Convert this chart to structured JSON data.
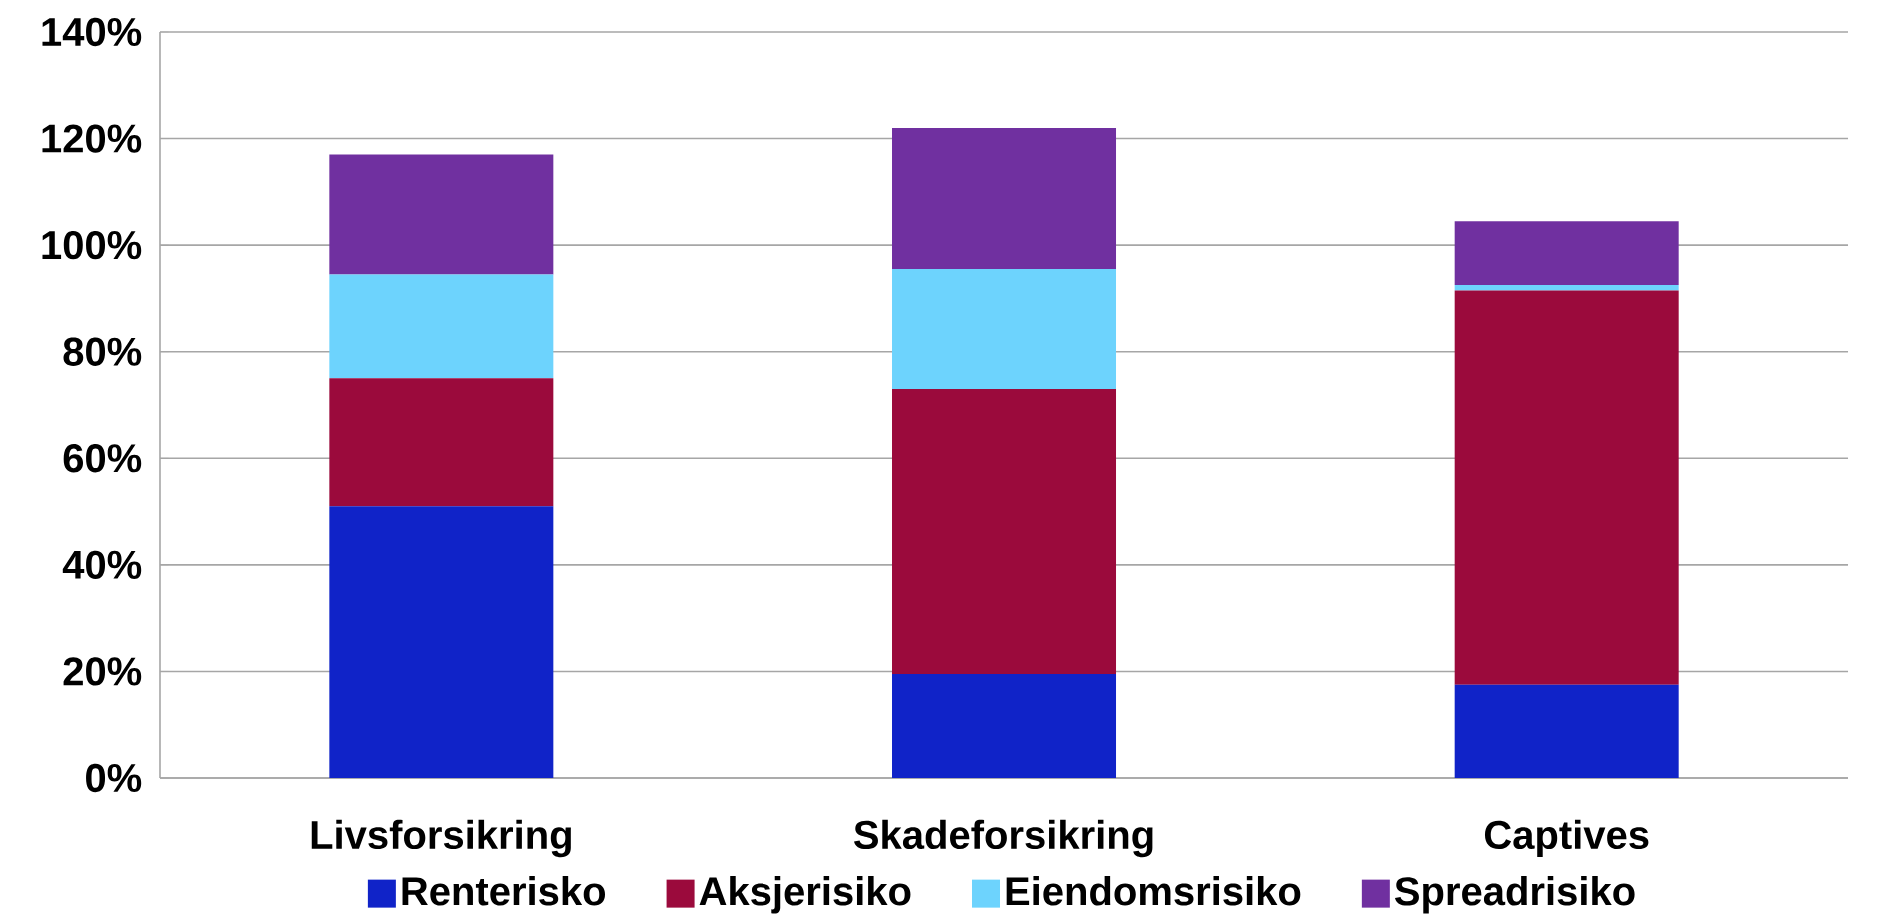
{
  "chart_data": {
    "type": "bar",
    "stacked": true,
    "categories": [
      "Livsforsikring",
      "Skadeforsikring",
      "Captives"
    ],
    "series": [
      {
        "name": "Renterisko",
        "color": "#1023c8",
        "values": [
          51,
          19.5,
          17.5
        ]
      },
      {
        "name": "Aksjerisiko",
        "color": "#9b0a3c",
        "values": [
          24,
          53.5,
          74
        ]
      },
      {
        "name": "Eiendomsrisiko",
        "color": "#6dd3fd",
        "values": [
          19.5,
          22.5,
          1
        ]
      },
      {
        "name": "Spreadrisiko",
        "color": "#7030a0",
        "values": [
          22.5,
          26.5,
          12
        ]
      }
    ],
    "ylim": [
      0,
      140
    ],
    "yticks": [
      {
        "value": 0,
        "label": "0%"
      },
      {
        "value": 20,
        "label": "20%"
      },
      {
        "value": 40,
        "label": "40%"
      },
      {
        "value": 60,
        "label": "60%"
      },
      {
        "value": 80,
        "label": "80%"
      },
      {
        "value": 100,
        "label": "100%"
      },
      {
        "value": 120,
        "label": "120%"
      },
      {
        "value": 140,
        "label": "140%"
      }
    ],
    "grid": "y",
    "legend": "bottom"
  }
}
